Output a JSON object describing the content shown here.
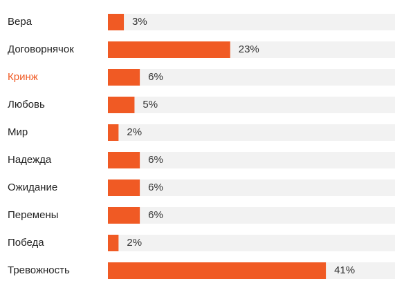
{
  "chart_data": {
    "type": "bar",
    "orientation": "horizontal",
    "categories": [
      "Вера",
      "Договорнячок",
      "Кринж",
      "Любовь",
      "Мир",
      "Надежда",
      "Ожидание",
      "Перемены",
      "Победа",
      "Тревожность"
    ],
    "values": [
      3,
      23,
      6,
      5,
      2,
      6,
      6,
      6,
      2,
      41
    ],
    "value_labels": [
      "3%",
      "23%",
      "6%",
      "5%",
      "2%",
      "6%",
      "6%",
      "6%",
      "2%",
      "41%"
    ],
    "highlighted_category": "Кринж",
    "xlim": [
      0,
      54
    ],
    "title": "",
    "xlabel": "",
    "ylabel": "",
    "grid": false,
    "legend": "none"
  },
  "colors": {
    "bar": "#f05a24",
    "track": "#f2f2f2",
    "label": "#222222",
    "highlight_label": "#f05a24",
    "value_label": "#333333"
  }
}
